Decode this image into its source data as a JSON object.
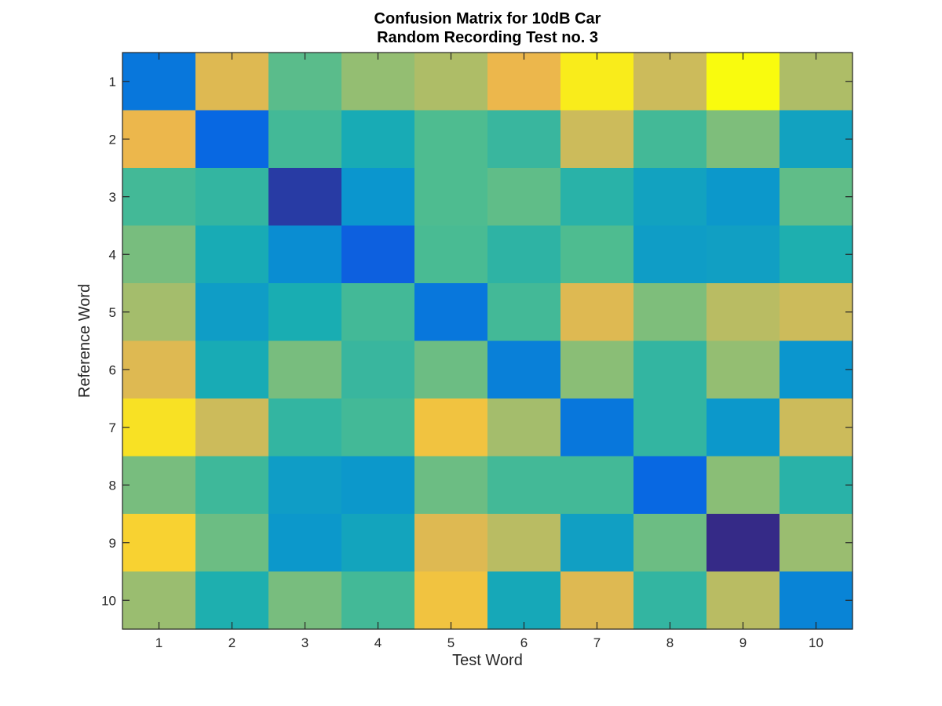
{
  "chart_data": {
    "type": "heatmap",
    "title": "Confusion Matrix for 10dB Car",
    "subtitle": "Random Recording Test no. 3",
    "xlabel": "Test Word",
    "ylabel": "Reference Word",
    "x_categories": [
      "1",
      "2",
      "3",
      "4",
      "5",
      "6",
      "7",
      "8",
      "9",
      "10"
    ],
    "y_categories": [
      "1",
      "2",
      "3",
      "4",
      "5",
      "6",
      "7",
      "8",
      "9",
      "10"
    ],
    "colormap": "parula",
    "grid": false,
    "colorbar": false,
    "values": [
      [
        0.28,
        0.82,
        0.57,
        0.67,
        0.72,
        0.85,
        0.97,
        0.78,
        1.0,
        0.72
      ],
      [
        0.85,
        0.24,
        0.53,
        0.44,
        0.55,
        0.51,
        0.78,
        0.53,
        0.63,
        0.4
      ],
      [
        0.53,
        0.5,
        0.05,
        0.35,
        0.55,
        0.58,
        0.48,
        0.4,
        0.36,
        0.58
      ],
      [
        0.62,
        0.44,
        0.33,
        0.18,
        0.54,
        0.49,
        0.55,
        0.38,
        0.39,
        0.46
      ],
      [
        0.7,
        0.38,
        0.45,
        0.53,
        0.28,
        0.53,
        0.82,
        0.63,
        0.74,
        0.78
      ],
      [
        0.82,
        0.44,
        0.62,
        0.51,
        0.6,
        0.3,
        0.65,
        0.5,
        0.67,
        0.35
      ],
      [
        0.95,
        0.78,
        0.5,
        0.53,
        0.88,
        0.7,
        0.28,
        0.5,
        0.36,
        0.78
      ],
      [
        0.62,
        0.52,
        0.38,
        0.36,
        0.6,
        0.53,
        0.53,
        0.24,
        0.65,
        0.48
      ],
      [
        0.92,
        0.6,
        0.36,
        0.41,
        0.82,
        0.74,
        0.39,
        0.6,
        0.0,
        0.68
      ],
      [
        0.68,
        0.46,
        0.62,
        0.53,
        0.88,
        0.43,
        0.82,
        0.5,
        0.74,
        0.31
      ]
    ]
  }
}
